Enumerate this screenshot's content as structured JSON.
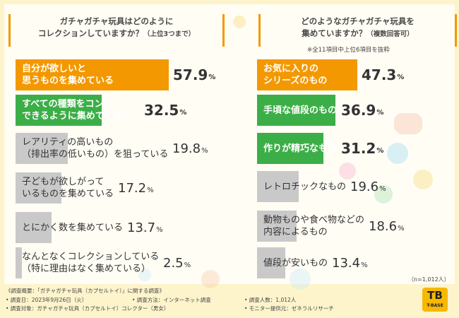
{
  "chart_data": [
    {
      "type": "bar",
      "title": "ガチャガチャ玩具はどのように\nコレクションしていますか？",
      "subtitle": "（上位3つまで）",
      "categories": [
        "自分が欲しいと\n思うものを集めている",
        "すべての種類をコンプリート\nできるように集めている",
        "レアリティの高いもの\n（排出率の低いもの）を狙っている",
        "子どもが欲しがって\nいるものを集めている",
        "とにかく数を集めている",
        "なんとなくコレクションしている\n（特に理由はなく集めている）"
      ],
      "values": [
        57.9,
        32.5,
        19.8,
        17.2,
        13.7,
        2.5
      ],
      "unit": "%",
      "colors": [
        "#f39800",
        "#3cae47",
        "#c9c9c9",
        "#c9c9c9",
        "#c9c9c9",
        "#c9c9c9"
      ]
    },
    {
      "type": "bar",
      "title": "どのようなガチャガチャ玩具を\n集めていますか？",
      "subtitle": "（複数回答可）",
      "note": "※全11項目中上位6項目を抜粋",
      "categories": [
        "お気に入りの\nシリーズのもの",
        "手頃な値段のもの",
        "作りが精巧なもの",
        "レトロチックなもの",
        "動物ものや食べ物などの\n内容によるもの",
        "値段が安いもの"
      ],
      "values": [
        47.3,
        36.9,
        31.2,
        19.6,
        18.6,
        13.4
      ],
      "unit": "%",
      "sample": "（n=1,012人）",
      "colors": [
        "#f39800",
        "#3cae47",
        "#3cae47",
        "#c9c9c9",
        "#c9c9c9",
        "#c9c9c9"
      ]
    }
  ],
  "footer": {
    "line1": "《調査概要：「ガチャガチャ玩具（カプセルトイ）」に関する調査》",
    "date": "• 調査日：2023年9月26日（火）",
    "method": "• 調査方法：インターネット調査",
    "count": "• 調査人数：1,012人",
    "target": "• 調査対象：ガチャガチャ玩具（カプセルトイ）コレクター（男女）",
    "provider": "• モニター提供元：ゼネラルリサーチ"
  },
  "logo": {
    "mark": "TB",
    "text": "T-BASE"
  }
}
